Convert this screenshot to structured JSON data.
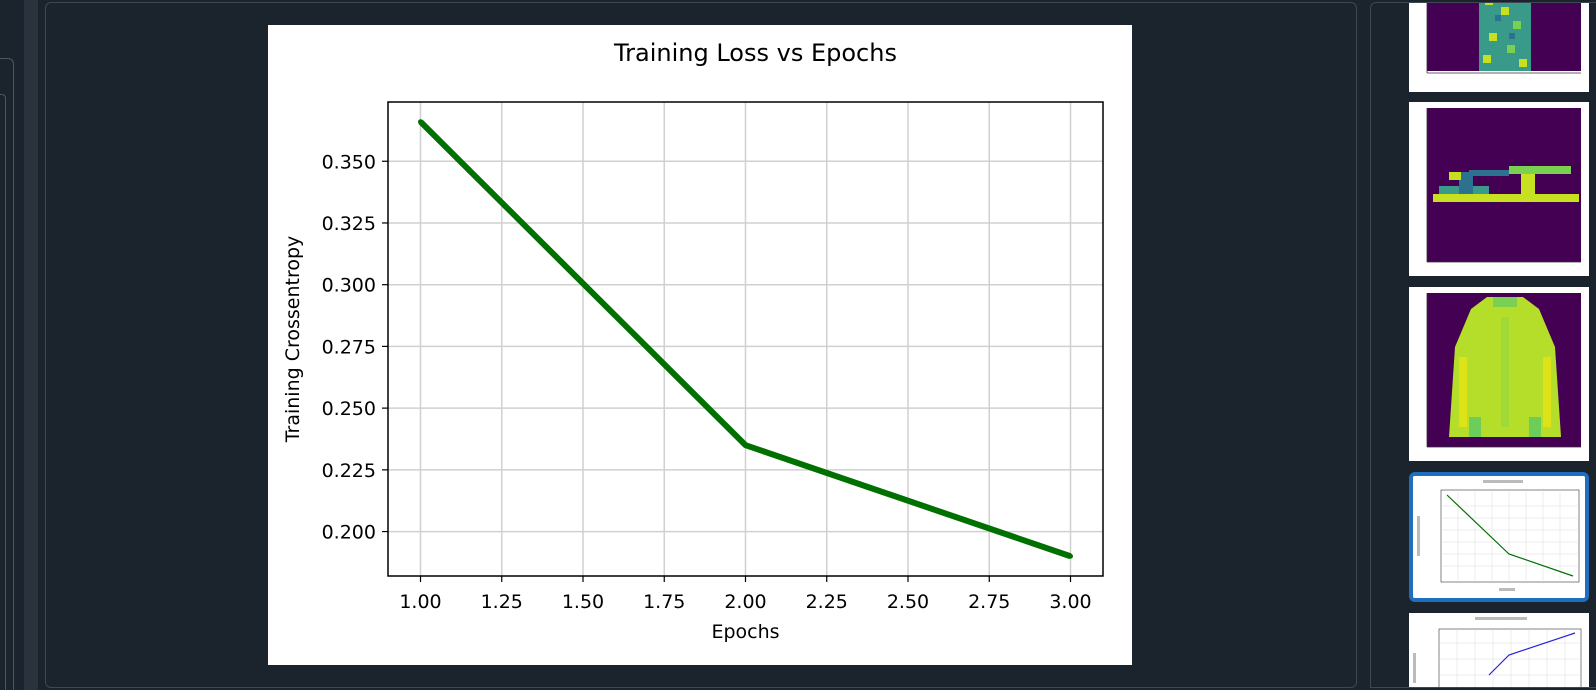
{
  "viewer": {
    "figure_title": "Training Loss vs Epochs"
  },
  "chart_data": {
    "type": "line",
    "title": "Training Loss vs Epochs",
    "xlabel": "Epochs",
    "ylabel": "Training Crossentropy",
    "x": [
      1.0,
      2.0,
      3.0
    ],
    "series": [
      {
        "values": [
          0.366,
          0.235,
          0.19
        ],
        "color": "#007000"
      }
    ],
    "xlim": [
      0.9,
      3.1
    ],
    "ylim": [
      0.182,
      0.374
    ],
    "x_ticks": [
      "1.00",
      "1.25",
      "1.50",
      "1.75",
      "2.00",
      "2.25",
      "2.50",
      "2.75",
      "3.00"
    ],
    "x_tick_values": [
      1.0,
      1.25,
      1.5,
      1.75,
      2.0,
      2.25,
      2.5,
      2.75,
      3.0
    ],
    "y_ticks": [
      "0.200",
      "0.225",
      "0.250",
      "0.275",
      "0.300",
      "0.325",
      "0.350"
    ],
    "y_tick_values": [
      0.2,
      0.225,
      0.25,
      0.275,
      0.3,
      0.325,
      0.35
    ],
    "grid": true,
    "legend": "none"
  },
  "filmstrip": {
    "thumbnails": [
      {
        "name": "dress-image",
        "selected": false
      },
      {
        "name": "sandal-image",
        "selected": false
      },
      {
        "name": "coat-image",
        "selected": false
      },
      {
        "name": "loss-chart",
        "selected": true
      },
      {
        "name": "accuracy-chart",
        "selected": false
      }
    ],
    "colors": {
      "selection": "#1e6fc0",
      "image_bg": "#440154",
      "image_fg": "#c7e020"
    }
  }
}
